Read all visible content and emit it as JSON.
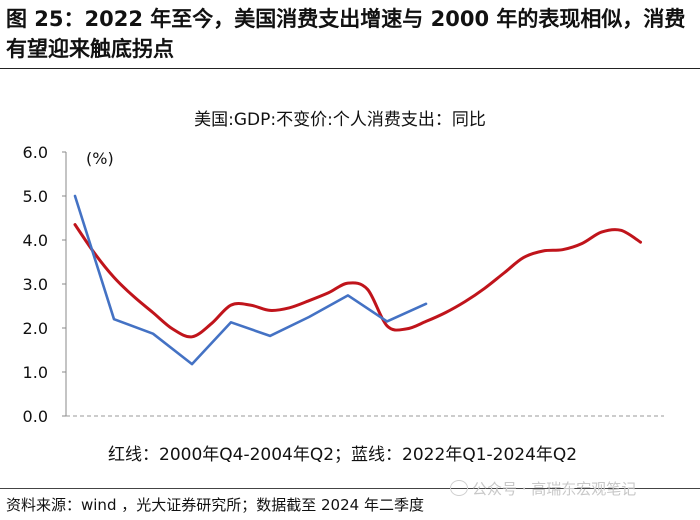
{
  "figure": {
    "title": "图 25：2022 年至今，美国消费支出增速与 2000 年的表现相似，消费有望迎来触底拐点",
    "source": "资料来源：wind ，光大证券研究所；数据截至 2024 年二季度",
    "watermark": "公众号 · 高瑞东宏观笔记"
  },
  "colors": {
    "red": "#c0141b",
    "blue": "#4472c4",
    "axis": "#888888"
  },
  "chart_data": {
    "type": "line",
    "title": "美国:GDP:不变价:个人消费支出：同比",
    "ylabel": "(%)",
    "ylim": [
      0,
      6
    ],
    "yticks": [
      "0.0",
      "1.0",
      "2.0",
      "3.0",
      "4.0",
      "5.0",
      "6.0"
    ],
    "xrange": [
      0,
      15
    ],
    "annotation": "红线：2000年Q4-2004年Q2；蓝线：2022年Q1-2024年Q2",
    "series": [
      {
        "name": "2000年Q4-2004年Q2",
        "color": "#c0141b",
        "x": [
          0,
          0.5,
          1,
          1.5,
          2,
          2.5,
          3,
          3.5,
          4,
          4.5,
          5,
          5.5,
          6,
          6.5,
          7,
          7.5,
          8,
          8.5,
          9,
          9.5,
          10,
          10.5,
          11,
          11.5,
          12,
          12.5,
          13,
          13.5,
          14,
          14.5
        ],
        "values": [
          4.35,
          3.7,
          3.15,
          2.72,
          2.35,
          1.98,
          1.8,
          2.1,
          2.52,
          2.52,
          2.4,
          2.46,
          2.62,
          2.8,
          3.02,
          2.88,
          2.05,
          1.98,
          2.15,
          2.35,
          2.6,
          2.9,
          3.25,
          3.6,
          3.75,
          3.78,
          3.92,
          4.18,
          4.22,
          3.95
        ]
      },
      {
        "name": "2022年Q1-2024年Q2",
        "color": "#4472c4",
        "x": [
          0,
          1,
          2,
          3,
          4,
          5,
          6,
          7,
          8,
          9
        ],
        "values": [
          5.0,
          2.2,
          1.87,
          1.18,
          2.13,
          1.82,
          2.25,
          2.74,
          2.15,
          2.55
        ]
      }
    ]
  }
}
